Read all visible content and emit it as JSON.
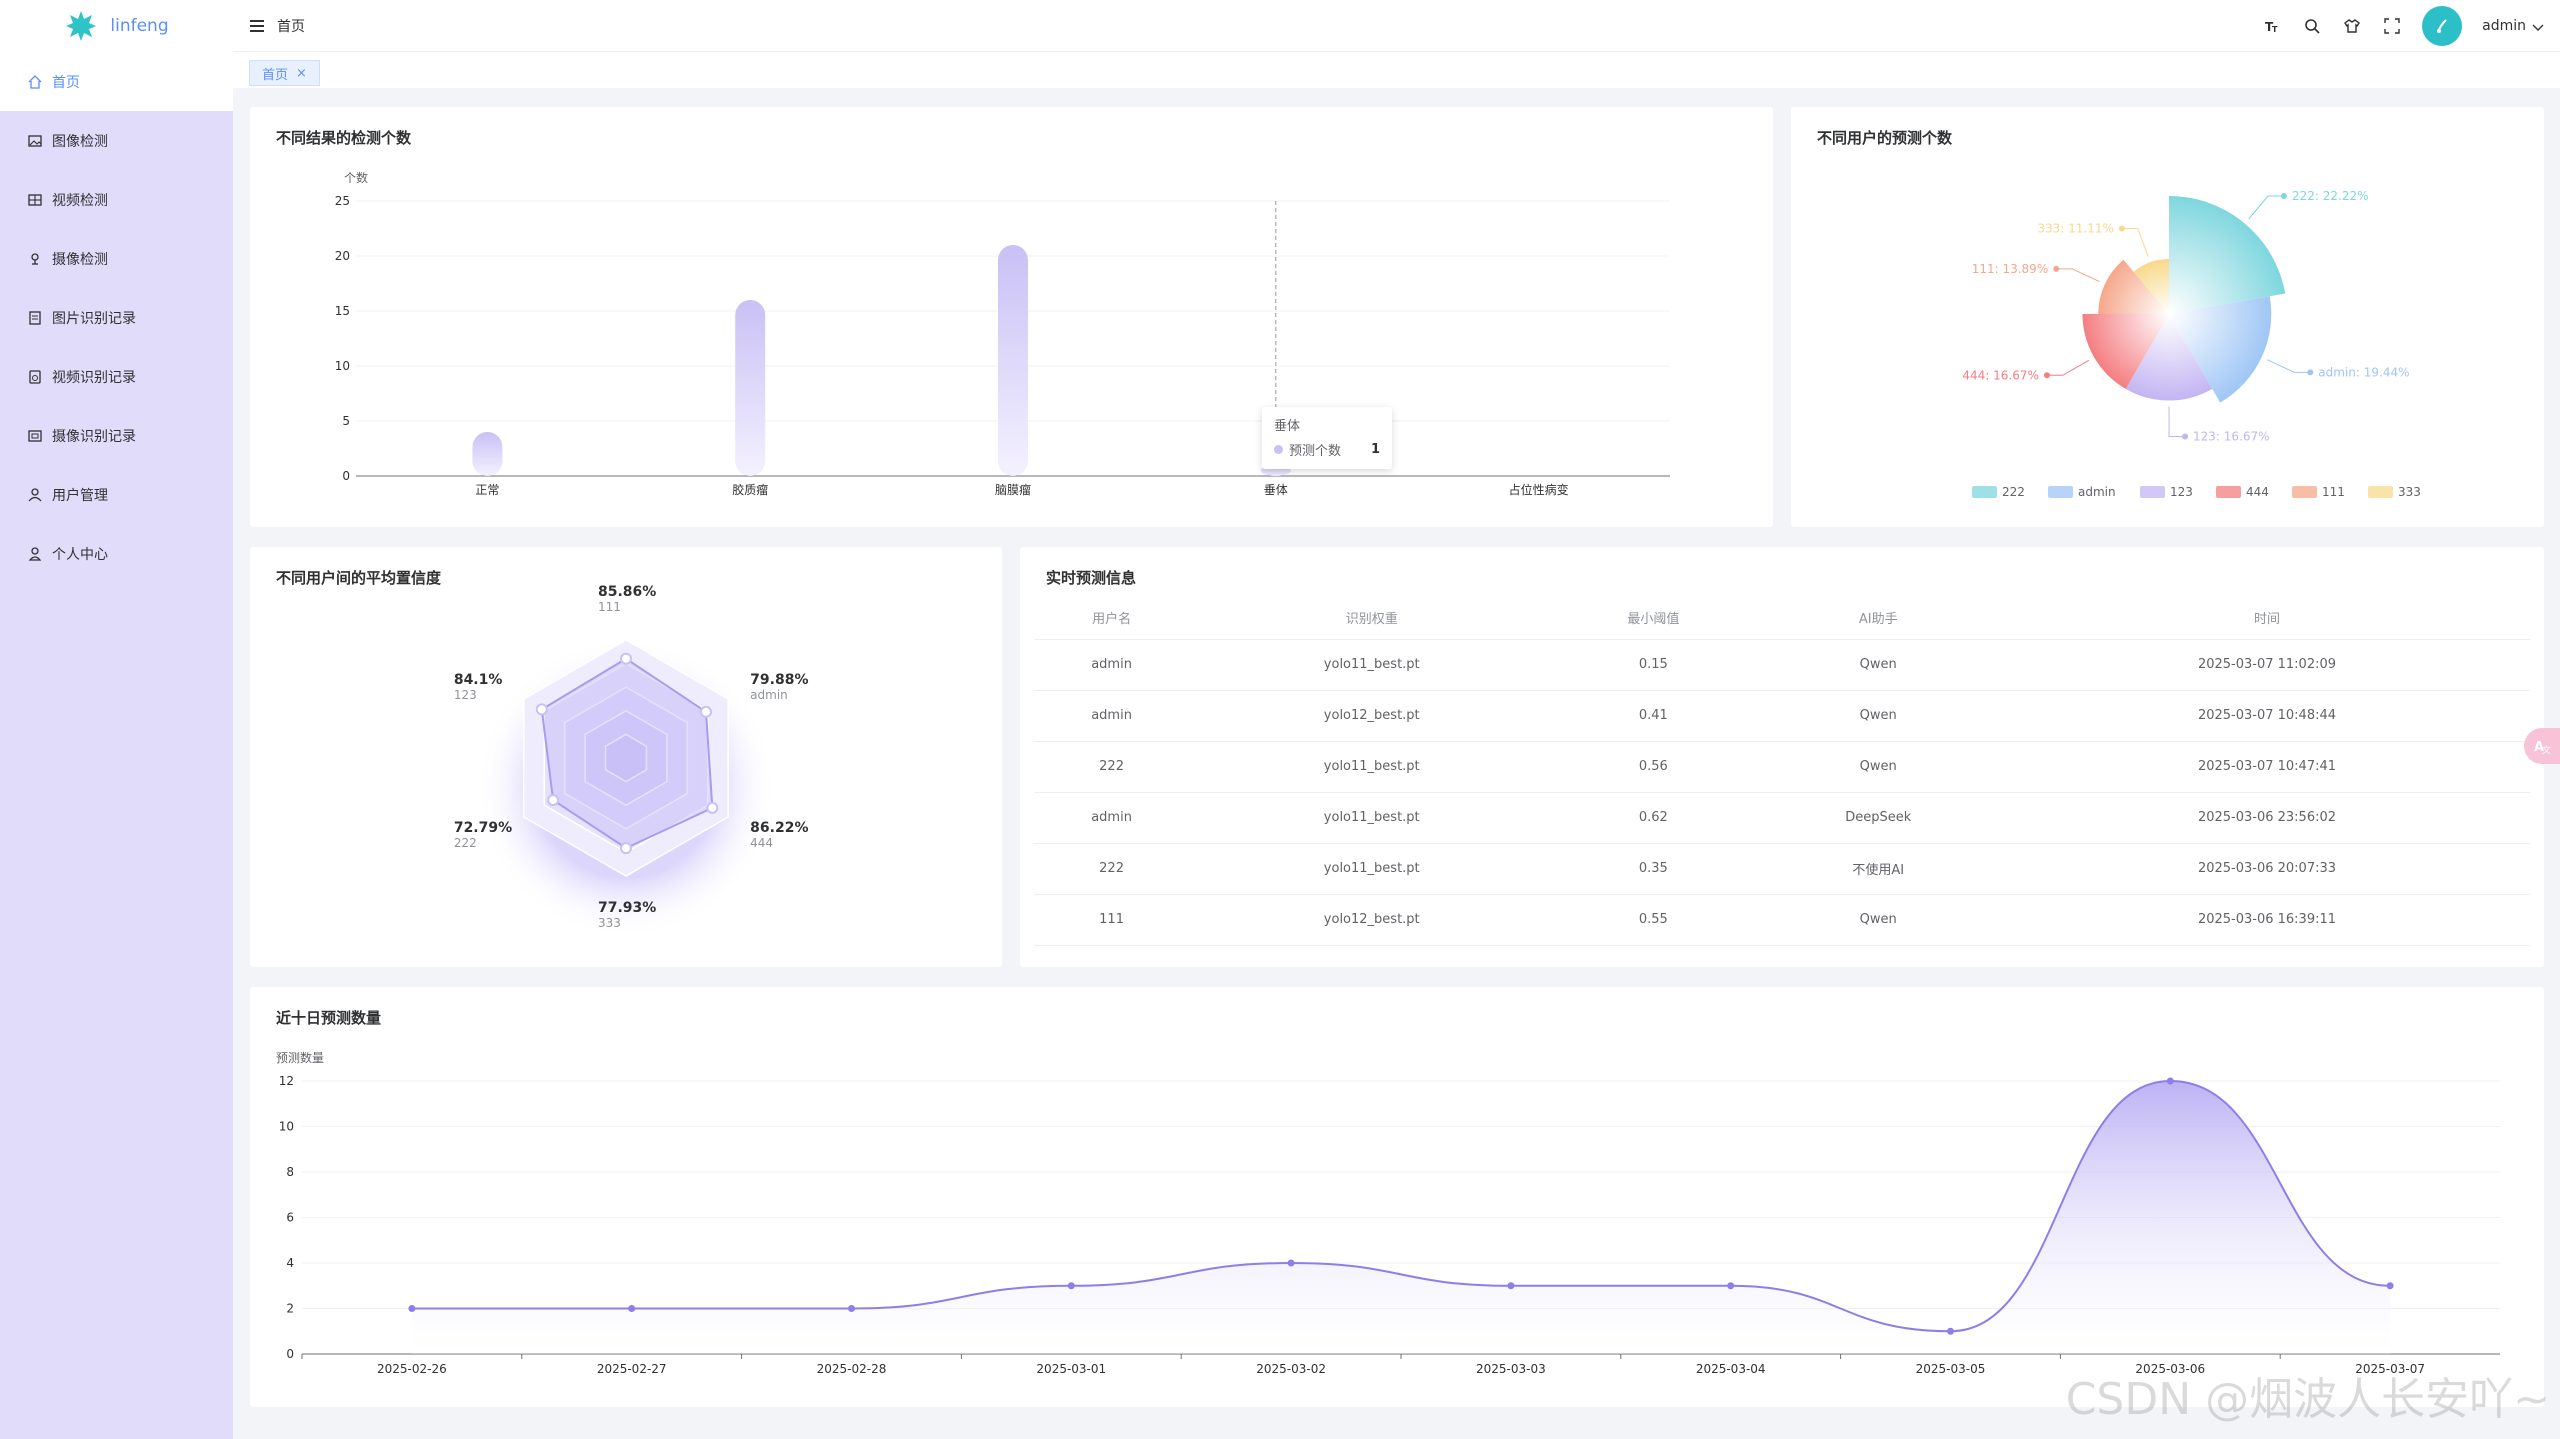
{
  "app": {
    "name": "linfeng"
  },
  "sidebar": {
    "items": [
      {
        "label": "首页",
        "icon": "home-icon",
        "active": true
      },
      {
        "label": "图像检测",
        "icon": "image-icon"
      },
      {
        "label": "视频检测",
        "icon": "video-icon"
      },
      {
        "label": "摄像检测",
        "icon": "camera-icon"
      },
      {
        "label": "图片识别记录",
        "icon": "image-record-icon"
      },
      {
        "label": "视频识别记录",
        "icon": "video-record-icon"
      },
      {
        "label": "摄像识别记录",
        "icon": "camera-record-icon"
      },
      {
        "label": "用户管理",
        "icon": "user-manage-icon"
      },
      {
        "label": "个人中心",
        "icon": "profile-icon"
      }
    ]
  },
  "header": {
    "breadcrumb": "首页",
    "tools": [
      {
        "name": "font-size-icon",
        "glyph": "T"
      },
      {
        "name": "search-icon",
        "glyph": ""
      },
      {
        "name": "theme-icon",
        "glyph": ""
      },
      {
        "name": "fullscreen-icon",
        "glyph": ""
      }
    ],
    "user": "admin"
  },
  "tabs": [
    {
      "label": "首页",
      "close": "×"
    }
  ],
  "cards": {
    "bar_title": "不同结果的检测个数",
    "pie_title": "不同用户的预测个数",
    "radar_title": "不同用户间的平均置信度",
    "table_title": "实时预测信息",
    "line_title": "近十日预测数量"
  },
  "tooltip": {
    "title": "垂体",
    "series": "预测个数",
    "value": "1"
  },
  "table": {
    "columns": [
      "用户名",
      "识别权重",
      "最小阈值",
      "AI助手",
      "时间"
    ],
    "rows": [
      [
        "admin",
        "yolo11_best.pt",
        "0.15",
        "Qwen",
        "2025-03-07 11:02:09"
      ],
      [
        "admin",
        "yolo12_best.pt",
        "0.41",
        "Qwen",
        "2025-03-07 10:48:44"
      ],
      [
        "222",
        "yolo11_best.pt",
        "0.56",
        "Qwen",
        "2025-03-07 10:47:41"
      ],
      [
        "admin",
        "yolo11_best.pt",
        "0.62",
        "DeepSeek",
        "2025-03-06 23:56:02"
      ],
      [
        "222",
        "yolo11_best.pt",
        "0.35",
        "不使用AI",
        "2025-03-06 20:07:33"
      ],
      [
        "111",
        "yolo12_best.pt",
        "0.55",
        "Qwen",
        "2025-03-06 16:39:11"
      ]
    ]
  },
  "colors": {
    "accent": "#5b8ff9",
    "sidebar_bg": "#e2dcfb",
    "bar": "#c9c0f5",
    "line": "#8f7ee8"
  },
  "watermark": "CSDN @烟波人长安吖~",
  "chart_data": [
    {
      "type": "bar",
      "title": "不同结果的检测个数",
      "ylabel": "个数",
      "categories": [
        "正常",
        "胶质瘤",
        "脑膜瘤",
        "垂体",
        "占位性病变"
      ],
      "series": [
        {
          "name": "预测个数",
          "values": [
            4,
            16,
            21,
            1,
            0
          ]
        }
      ],
      "ylim": [
        0,
        25
      ],
      "yticks": [
        0,
        5,
        10,
        15,
        20,
        25
      ]
    },
    {
      "type": "pie",
      "title": "不同用户的预测个数",
      "slices": [
        {
          "name": "222",
          "value": 22.22,
          "label": "222: 22.22%",
          "color": "#7fd6de"
        },
        {
          "name": "admin",
          "value": 19.44,
          "label": "admin: 19.44%",
          "color": "#9fc6f5"
        },
        {
          "name": "123",
          "value": 16.67,
          "label": "123: 16.67%",
          "color": "#c3b5f3"
        },
        {
          "name": "444",
          "value": 16.67,
          "label": "444: 16.67%",
          "color": "#f47e82"
        },
        {
          "name": "111",
          "value": 13.89,
          "label": "111: 13.89%",
          "color": "#f6a78a"
        },
        {
          "name": "333",
          "value": 11.11,
          "label": "333: 11.11%",
          "color": "#f8d98b"
        }
      ],
      "legend": "bottom"
    },
    {
      "type": "radar",
      "title": "不同用户间的平均置信度",
      "indicators": [
        {
          "name": "111",
          "value": "85.86%"
        },
        {
          "name": "admin",
          "value": "79.88%"
        },
        {
          "name": "444",
          "value": "86.22%"
        },
        {
          "name": "333",
          "value": "77.93%"
        },
        {
          "name": "222",
          "value": "72.79%"
        },
        {
          "name": "123",
          "value": "84.1%"
        }
      ]
    },
    {
      "type": "area",
      "title": "近十日预测数量",
      "ylabel": "预测数量",
      "x": [
        "2025-02-26",
        "2025-02-27",
        "2025-02-28",
        "2025-03-01",
        "2025-03-02",
        "2025-03-03",
        "2025-03-04",
        "2025-03-05",
        "2025-03-06",
        "2025-03-07"
      ],
      "values": [
        2,
        2,
        2,
        3,
        4,
        3,
        3,
        1,
        12,
        3
      ],
      "ylim": [
        0,
        12
      ],
      "yticks": [
        0,
        2,
        4,
        6,
        8,
        10,
        12
      ]
    }
  ]
}
